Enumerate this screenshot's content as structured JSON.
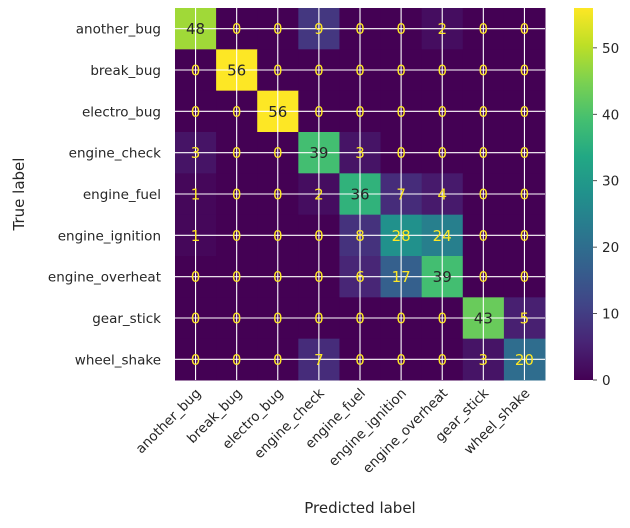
{
  "chart_data": {
    "type": "heatmap",
    "title": "",
    "xlabel": "Predicted label",
    "ylabel": "True label",
    "x_categories": [
      "another_bug",
      "break_bug",
      "electro_bug",
      "engine_check",
      "engine_fuel",
      "engine_ignition",
      "engine_overheat",
      "gear_stick",
      "wheel_shake"
    ],
    "y_categories": [
      "another_bug",
      "break_bug",
      "electro_bug",
      "engine_check",
      "engine_fuel",
      "engine_ignition",
      "engine_overheat",
      "gear_stick",
      "wheel_shake"
    ],
    "values": [
      [
        48,
        0,
        0,
        9,
        0,
        0,
        2,
        0,
        0
      ],
      [
        0,
        56,
        0,
        0,
        0,
        0,
        0,
        0,
        0
      ],
      [
        0,
        0,
        56,
        0,
        0,
        0,
        0,
        0,
        0
      ],
      [
        3,
        0,
        0,
        39,
        3,
        0,
        0,
        0,
        0
      ],
      [
        1,
        0,
        0,
        2,
        36,
        7,
        4,
        0,
        0
      ],
      [
        1,
        0,
        0,
        0,
        8,
        28,
        24,
        0,
        0
      ],
      [
        0,
        0,
        0,
        0,
        6,
        17,
        39,
        0,
        0
      ],
      [
        0,
        0,
        0,
        0,
        0,
        0,
        0,
        43,
        5
      ],
      [
        0,
        0,
        0,
        7,
        0,
        0,
        0,
        3,
        20
      ]
    ],
    "colormap": "viridis",
    "value_range": [
      0,
      56
    ],
    "colorbar_ticks": [
      0,
      10,
      20,
      30,
      40,
      50
    ],
    "grid": true,
    "colors": {
      "viridis_low": "#440154",
      "viridis_high": "#fde725",
      "text_on_dark": "#fde725",
      "text_on_light": "#262626"
    }
  }
}
